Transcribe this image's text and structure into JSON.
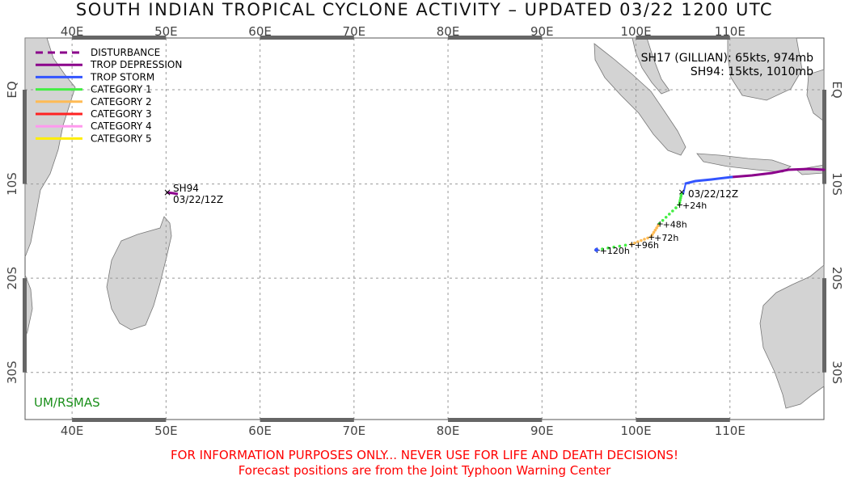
{
  "title": "SOUTH INDIAN TROPICAL CYCLONE ACTIVITY – UPDATED 03/22 1200 UTC",
  "axes": {
    "lon_labels": [
      "40E",
      "50E",
      "60E",
      "70E",
      "80E",
      "90E",
      "100E",
      "110E"
    ],
    "lat_labels": [
      "EQ",
      "10S",
      "20S",
      "30S"
    ]
  },
  "legend": [
    {
      "label": "DISTURBANCE",
      "color": "#8b008b",
      "style": "dashed"
    },
    {
      "label": "TROP DEPRESSION",
      "color": "#8b008b",
      "style": "solid"
    },
    {
      "label": "TROP STORM",
      "color": "#3355ff",
      "style": "solid"
    },
    {
      "label": "CATEGORY 1",
      "color": "#44ee44",
      "style": "solid"
    },
    {
      "label": "CATEGORY 2",
      "color": "#ffbb55",
      "style": "solid"
    },
    {
      "label": "CATEGORY 3",
      "color": "#ff2222",
      "style": "solid"
    },
    {
      "label": "CATEGORY 4",
      "color": "#ff99ee",
      "style": "solid"
    },
    {
      "label": "CATEGORY 5",
      "color": "#ffee00",
      "style": "solid"
    }
  ],
  "storm_info": [
    "SH17 (GILLIAN): 65kts, 974mb",
    "SH94: 15kts, 1010mb"
  ],
  "storms": {
    "sh94": {
      "name": "SH94",
      "time": "03/22/12Z",
      "lon": 50.2,
      "lat": -10.9
    },
    "sh17": {
      "time_label": "03/22/12Z",
      "current": {
        "lon": 104.9,
        "lat": -10.8
      },
      "forecast": [
        {
          "label": "+24h",
          "lon": 104.6,
          "lat": -12.2
        },
        {
          "label": "+48h",
          "lon": 102.5,
          "lat": -14.2
        },
        {
          "label": "+72h",
          "lon": 101.6,
          "lat": -15.6
        },
        {
          "label": "+96h",
          "lon": 99.5,
          "lat": -16.4
        },
        {
          "label": "+120h",
          "lon": 95.8,
          "lat": -17.0
        }
      ]
    }
  },
  "credit": "UM/RSMAS",
  "disclaimer_line1": "FOR INFORMATION PURPOSES ONLY... NEVER USE FOR LIFE AND DEATH DECISIONS!",
  "disclaimer_line2": "Forecast positions are from the Joint Typhoon Warning Center"
}
